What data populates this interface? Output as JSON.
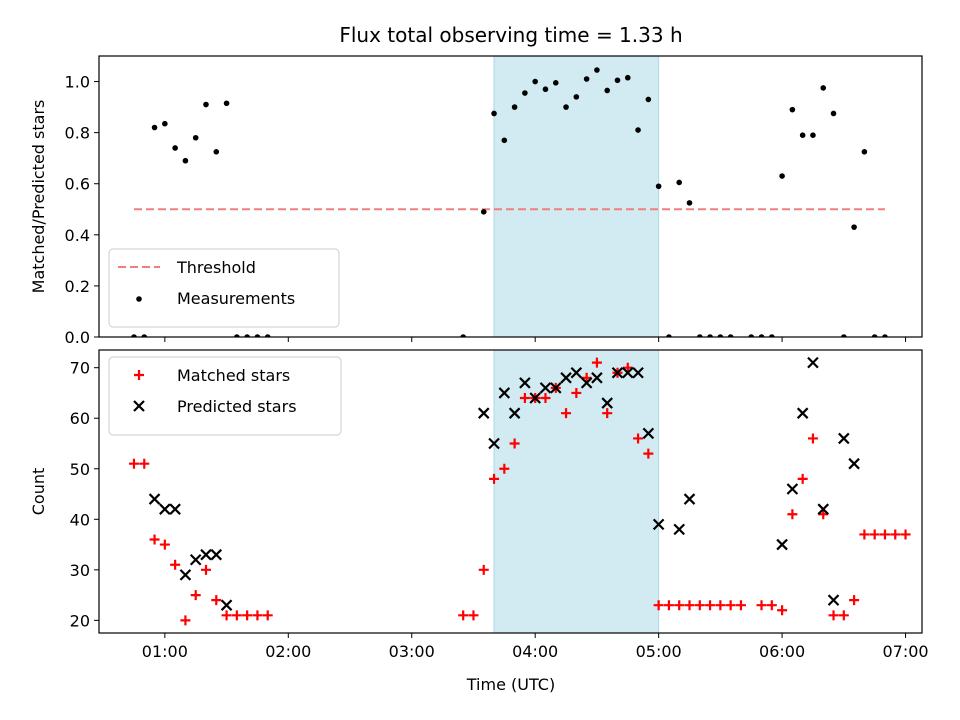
{
  "chart_data": [
    {
      "type": "scatter",
      "title": "Flux total observing time = 1.33 h",
      "ylabel": "Matched/Predicted stars",
      "xlabel": "",
      "xlim": [
        "00:28",
        "07:08"
      ],
      "ylim": [
        0,
        1.1
      ],
      "xticks": [
        "01:00",
        "02:00",
        "03:00",
        "04:00",
        "05:00",
        "06:00",
        "07:00"
      ],
      "yticks": [
        "0.0",
        "0.2",
        "0.4",
        "0.6",
        "0.8",
        "1.0"
      ],
      "highlight_span": [
        "03:40",
        "05:00"
      ],
      "highlight_color": "#add8e6",
      "legend_position": "lower-left",
      "threshold": {
        "name": "Threshold",
        "x": [
          "00:45",
          "06:50"
        ],
        "y": 0.5,
        "color": "#f08080",
        "style": "dashed"
      },
      "series": [
        {
          "name": "Measurements",
          "color": "#000000",
          "marker": "dot",
          "x": [
            "00:45",
            "00:50",
            "00:55",
            "01:00",
            "01:05",
            "01:10",
            "01:15",
            "01:20",
            "01:25",
            "01:30",
            "01:35",
            "01:40",
            "01:45",
            "01:50",
            "03:25",
            "03:35",
            "03:40",
            "03:45",
            "03:50",
            "03:55",
            "04:00",
            "04:05",
            "04:10",
            "04:15",
            "04:20",
            "04:25",
            "04:30",
            "04:35",
            "04:40",
            "04:45",
            "04:50",
            "04:55",
            "05:00",
            "05:05",
            "05:10",
            "05:15",
            "05:20",
            "05:25",
            "05:30",
            "05:35",
            "05:45",
            "05:50",
            "05:55",
            "06:00",
            "06:05",
            "06:10",
            "06:15",
            "06:20",
            "06:25",
            "06:30",
            "06:35",
            "06:40",
            "06:45",
            "06:50"
          ],
          "y": [
            0.0,
            0.0,
            0.82,
            0.835,
            0.74,
            0.69,
            0.78,
            0.91,
            0.725,
            0.915,
            0.0,
            0.0,
            0.0,
            0.0,
            0.0,
            0.49,
            0.875,
            0.77,
            0.9,
            0.955,
            1.0,
            0.97,
            0.995,
            0.9,
            0.94,
            1.01,
            1.045,
            0.965,
            1.005,
            1.015,
            0.81,
            0.93,
            0.59,
            0.0,
            0.605,
            0.525,
            0.0,
            0.0,
            0.0,
            0.0,
            0.0,
            0.0,
            0.0,
            0.63,
            0.89,
            0.79,
            0.79,
            0.975,
            0.875,
            0.0,
            0.43,
            0.725,
            0.0,
            0.0
          ]
        }
      ]
    },
    {
      "type": "scatter",
      "title": "",
      "ylabel": "Count",
      "xlabel": "Time (UTC)",
      "xlim": [
        "00:28",
        "07:08"
      ],
      "ylim": [
        17.5,
        73.5
      ],
      "xticks": [
        "01:00",
        "02:00",
        "03:00",
        "04:00",
        "05:00",
        "06:00",
        "07:00"
      ],
      "yticks": [
        "20",
        "30",
        "40",
        "50",
        "60",
        "70"
      ],
      "highlight_span": [
        "03:40",
        "05:00"
      ],
      "highlight_color": "#add8e6",
      "legend_position": "top-left",
      "series": [
        {
          "name": "Matched stars",
          "color": "#ff0000",
          "marker": "plus",
          "x": [
            "00:45",
            "00:50",
            "00:55",
            "01:00",
            "01:05",
            "01:10",
            "01:15",
            "01:20",
            "01:25",
            "01:30",
            "01:35",
            "01:40",
            "01:45",
            "01:50",
            "03:25",
            "03:30",
            "03:35",
            "03:40",
            "03:45",
            "03:50",
            "03:55",
            "04:00",
            "04:05",
            "04:10",
            "04:15",
            "04:20",
            "04:25",
            "04:30",
            "04:35",
            "04:40",
            "04:45",
            "04:50",
            "04:55",
            "05:00",
            "05:05",
            "05:10",
            "05:15",
            "05:20",
            "05:25",
            "05:30",
            "05:35",
            "05:40",
            "05:50",
            "05:55",
            "06:00",
            "06:05",
            "06:10",
            "06:15",
            "06:20",
            "06:25",
            "06:30",
            "06:35",
            "06:40",
            "06:45",
            "06:50",
            "06:55",
            "07:00"
          ],
          "y": [
            51,
            51,
            36,
            35,
            31,
            20,
            25,
            30,
            24,
            21,
            21,
            21,
            21,
            21,
            21,
            21,
            30,
            48,
            50,
            55,
            64,
            64,
            64,
            66,
            61,
            65,
            68,
            71,
            61,
            69,
            70,
            56,
            53,
            23,
            23,
            23,
            23,
            23,
            23,
            23,
            23,
            23,
            23,
            23,
            22,
            41,
            48,
            56,
            41,
            21,
            21,
            24,
            37,
            37,
            37,
            37,
            37
          ]
        },
        {
          "name": "Predicted stars",
          "color": "#000000",
          "marker": "x",
          "x": [
            "00:55",
            "01:00",
            "01:05",
            "01:10",
            "01:15",
            "01:20",
            "01:25",
            "01:30",
            "03:35",
            "03:40",
            "03:45",
            "03:50",
            "03:55",
            "04:00",
            "04:05",
            "04:10",
            "04:15",
            "04:20",
            "04:25",
            "04:30",
            "04:35",
            "04:40",
            "04:45",
            "04:50",
            "04:55",
            "05:00",
            "05:10",
            "05:15",
            "06:00",
            "06:05",
            "06:10",
            "06:15",
            "06:20",
            "06:25",
            "06:30",
            "06:35"
          ],
          "y": [
            44,
            42,
            42,
            29,
            32,
            33,
            33,
            23,
            61,
            55,
            65,
            61,
            67,
            64,
            66,
            66,
            68,
            69,
            67,
            68,
            63,
            69,
            69,
            69,
            57,
            39,
            38,
            44,
            35,
            46,
            61,
            71,
            42,
            24,
            56,
            51
          ]
        }
      ]
    }
  ]
}
